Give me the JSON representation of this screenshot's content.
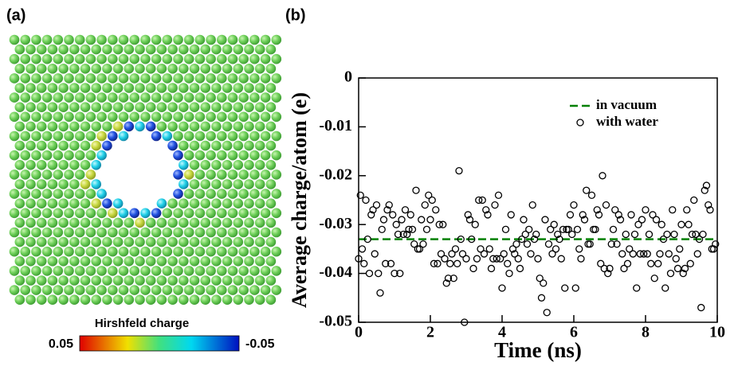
{
  "panel_a": {
    "label": "(a)",
    "colorbar": {
      "title": "Hirshfeld charge",
      "lim": [
        0.05,
        -0.05
      ],
      "ticks": [
        0.05,
        -0.05
      ]
    }
  },
  "chart_data": {
    "type": "scatter",
    "panel_label": "(b)",
    "xlabel": "Time (ns)",
    "ylabel": "Average charge/atom (e)",
    "xlim": [
      0,
      10
    ],
    "ylim": [
      -0.05,
      0
    ],
    "xticks": [
      0,
      2,
      4,
      6,
      8,
      10
    ],
    "yticks": [
      0,
      -0.01,
      -0.02,
      -0.03,
      -0.04,
      -0.05
    ],
    "legend": "upper right",
    "series": [
      {
        "name": "in vacuum",
        "color": "#008000",
        "style": "dashed-hline",
        "values": [
          -0.033
        ]
      },
      {
        "name": "with water",
        "color": "#000000",
        "style": "open-circle",
        "x": [
          0,
          0.05,
          0.1,
          0.15,
          0.2,
          0.25,
          0.3,
          0.35,
          0.4,
          0.45,
          0.5,
          0.55,
          0.6,
          0.65,
          0.7,
          0.75,
          0.8,
          0.85,
          0.9,
          0.95,
          1,
          1.05,
          1.1,
          1.15,
          1.2,
          1.25,
          1.3,
          1.35,
          1.4,
          1.45,
          1.5,
          1.55,
          1.6,
          1.65,
          1.7,
          1.75,
          1.8,
          1.85,
          1.9,
          1.95,
          2,
          2.05,
          2.1,
          2.15,
          2.2,
          2.25,
          2.3,
          2.35,
          2.4,
          2.45,
          2.5,
          2.55,
          2.6,
          2.65,
          2.7,
          2.75,
          2.8,
          2.85,
          2.9,
          2.95,
          3,
          3.05,
          3.1,
          3.15,
          3.2,
          3.25,
          3.3,
          3.35,
          3.4,
          3.45,
          3.5,
          3.55,
          3.6,
          3.65,
          3.7,
          3.75,
          3.8,
          3.85,
          3.9,
          3.95,
          4,
          4.05,
          4.1,
          4.15,
          4.2,
          4.25,
          4.3,
          4.35,
          4.4,
          4.45,
          4.5,
          4.55,
          4.6,
          4.65,
          4.7,
          4.75,
          4.8,
          4.85,
          4.9,
          4.95,
          5,
          5.05,
          5.1,
          5.15,
          5.2,
          5.25,
          5.3,
          5.35,
          5.4,
          5.45,
          5.5,
          5.55,
          5.6,
          5.65,
          5.7,
          5.75,
          5.8,
          5.85,
          5.9,
          5.95,
          6,
          6.05,
          6.1,
          6.15,
          6.2,
          6.25,
          6.3,
          6.35,
          6.4,
          6.45,
          6.5,
          6.55,
          6.6,
          6.65,
          6.7,
          6.75,
          6.8,
          6.85,
          6.9,
          6.95,
          7,
          7.05,
          7.1,
          7.15,
          7.2,
          7.25,
          7.3,
          7.35,
          7.4,
          7.45,
          7.5,
          7.55,
          7.6,
          7.65,
          7.7,
          7.75,
          7.8,
          7.85,
          7.9,
          7.95,
          8,
          8.05,
          8.1,
          8.15,
          8.2,
          8.25,
          8.3,
          8.35,
          8.4,
          8.45,
          8.5,
          8.55,
          8.6,
          8.65,
          8.7,
          8.75,
          8.8,
          8.85,
          8.9,
          8.95,
          9,
          9.05,
          9.1,
          9.15,
          9.2,
          9.25,
          9.3,
          9.35,
          9.4,
          9.45,
          9.5,
          9.55,
          9.6,
          9.65,
          9.7,
          9.75,
          9.8,
          9.85,
          9.9,
          9.95
        ],
        "values": [
          -0.037,
          -0.024,
          -0.035,
          -0.038,
          -0.025,
          -0.033,
          -0.04,
          -0.028,
          -0.027,
          -0.036,
          -0.026,
          -0.04,
          -0.044,
          -0.031,
          -0.029,
          -0.038,
          -0.027,
          -0.026,
          -0.038,
          -0.028,
          -0.04,
          -0.03,
          -0.032,
          -0.04,
          -0.029,
          -0.032,
          -0.027,
          -0.032,
          -0.031,
          -0.028,
          -0.031,
          -0.034,
          -0.023,
          -0.035,
          -0.035,
          -0.029,
          -0.034,
          -0.026,
          -0.031,
          -0.024,
          -0.029,
          -0.025,
          -0.038,
          -0.027,
          -0.038,
          -0.03,
          -0.036,
          -0.03,
          -0.037,
          -0.042,
          -0.041,
          -0.038,
          -0.036,
          -0.041,
          -0.035,
          -0.038,
          -0.019,
          -0.033,
          -0.036,
          -0.05,
          -0.037,
          -0.028,
          -0.029,
          -0.033,
          -0.039,
          -0.03,
          -0.037,
          -0.025,
          -0.035,
          -0.025,
          -0.036,
          -0.027,
          -0.028,
          -0.035,
          -0.039,
          -0.037,
          -0.026,
          -0.037,
          -0.024,
          -0.037,
          -0.043,
          -0.036,
          -0.031,
          -0.038,
          -0.04,
          -0.028,
          -0.035,
          -0.036,
          -0.034,
          -0.037,
          -0.039,
          -0.033,
          -0.029,
          -0.032,
          -0.034,
          -0.031,
          -0.036,
          -0.026,
          -0.033,
          -0.032,
          -0.037,
          -0.041,
          -0.045,
          -0.042,
          -0.029,
          -0.048,
          -0.034,
          -0.031,
          -0.036,
          -0.03,
          -0.035,
          -0.032,
          -0.033,
          -0.037,
          -0.031,
          -0.043,
          -0.031,
          -0.031,
          -0.028,
          -0.032,
          -0.026,
          -0.043,
          -0.031,
          -0.035,
          -0.037,
          -0.028,
          -0.029,
          -0.023,
          -0.034,
          -0.034,
          -0.024,
          -0.031,
          -0.031,
          -0.027,
          -0.028,
          -0.038,
          -0.02,
          -0.039,
          -0.026,
          -0.04,
          -0.039,
          -0.034,
          -0.031,
          -0.027,
          -0.034,
          -0.028,
          -0.029,
          -0.036,
          -0.039,
          -0.032,
          -0.038,
          -0.035,
          -0.028,
          -0.036,
          -0.032,
          -0.043,
          -0.03,
          -0.036,
          -0.029,
          -0.036,
          -0.027,
          -0.036,
          -0.032,
          -0.038,
          -0.028,
          -0.041,
          -0.029,
          -0.038,
          -0.036,
          -0.03,
          -0.033,
          -0.043,
          -0.032,
          -0.036,
          -0.04,
          -0.027,
          -0.032,
          -0.037,
          -0.039,
          -0.035,
          -0.03,
          -0.04,
          -0.039,
          -0.027,
          -0.03,
          -0.038,
          -0.032,
          -0.025,
          -0.032,
          -0.036,
          -0.033,
          -0.047,
          -0.032,
          -0.023,
          -0.022,
          -0.026,
          -0.027,
          -0.035,
          -0.035,
          -0.034
        ]
      }
    ]
  }
}
